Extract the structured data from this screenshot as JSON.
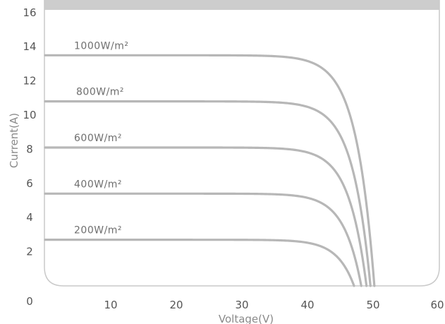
{
  "chart_data": {
    "type": "line",
    "xlabel": "Voltage(V)",
    "ylabel": "Current(A)",
    "xlim": [
      0,
      60
    ],
    "ylim": [
      0,
      16
    ],
    "xticks": [
      "0",
      "10",
      "20",
      "30",
      "40",
      "50",
      "60"
    ],
    "yticks": [
      "0",
      "2",
      "4",
      "6",
      "8",
      "10",
      "12",
      "14",
      "16"
    ],
    "series": [
      {
        "name": "1000W/m²",
        "isc": 13.5,
        "voc": 50.2
      },
      {
        "name": "800W/m²",
        "isc": 10.8,
        "voc": 49.6
      },
      {
        "name": "600W/m²",
        "isc": 8.1,
        "voc": 49.0
      },
      {
        "name": "400W/m²",
        "isc": 5.4,
        "voc": 48.2
      },
      {
        "name": "200W/m²",
        "isc": 2.7,
        "voc": 47.1
      }
    ],
    "colors": {
      "curve": "#b7b7b7",
      "frame": "#c9c9c9",
      "band": "#cdcdcd"
    },
    "grid": false
  }
}
